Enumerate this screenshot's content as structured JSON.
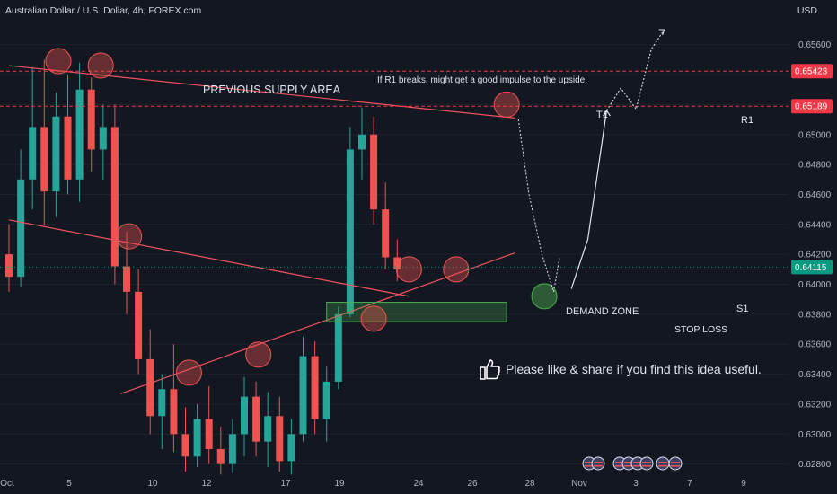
{
  "header": {
    "title": "Australian Dollar / U.S. Dollar, 4h, FOREX.com",
    "currency": "USD"
  },
  "annotations": {
    "supply_area": "PREVIOUS SUPPLY AREA",
    "r1_note": "If R1 breaks, might get a good impulse to the upside.",
    "t1_label": "T1",
    "r1_label": "R1",
    "s1_label": "S1",
    "demand_zone": "DEMAND ZONE",
    "stop_loss": "STOP LOSS",
    "like_text": "Please like & share if you find this idea useful."
  },
  "colors": {
    "background": "#131722",
    "bull": "#26a69a",
    "bear": "#ef5350",
    "trendline": "#f05460",
    "demand_zone": "#4caf50",
    "current_price_bg": "#089981",
    "level_price_bg": "#f23645"
  },
  "icons": [
    "thumbs-up-icon",
    "flag-au-icon",
    "flag-us-icon"
  ],
  "chart_data": {
    "type": "candlestick",
    "title": "Australian Dollar / U.S. Dollar, 4h, FOREX.com",
    "ylabel": "USD",
    "ylim": [
      0.6272,
      0.6579
    ],
    "y_ticks": [
      "0.65600",
      "0.65400",
      "0.65200",
      "0.65000",
      "0.64800",
      "0.64600",
      "0.64400",
      "0.64200",
      "0.64000",
      "0.63800",
      "0.63600",
      "0.63400",
      "0.63200",
      "0.63000",
      "0.62800"
    ],
    "x_ticks": [
      "Oct",
      "5",
      "10",
      "12",
      "17",
      "19",
      "24",
      "26",
      "28",
      "Nov",
      "3",
      "7",
      "9"
    ],
    "price_labels": [
      {
        "value": 0.65423,
        "label": "0.65423",
        "style": "dashed"
      },
      {
        "value": 0.65189,
        "label": "0.65189",
        "style": "dashed"
      },
      {
        "value": 0.64115,
        "label": "0.64115",
        "style": "current"
      }
    ],
    "trendlines": [
      {
        "name": "R1",
        "from": [
          0,
          0.6546
        ],
        "to": [
          43,
          0.6511
        ]
      },
      {
        "name": "",
        "from": [
          0,
          0.6443
        ],
        "to": [
          34,
          0.6392
        ]
      },
      {
        "name": "",
        "from": [
          9.5,
          0.6327
        ],
        "to": [
          43,
          0.6421
        ]
      }
    ],
    "zones": [
      {
        "name": "DEMAND ZONE",
        "from_x": 27,
        "to_x": 42.3,
        "y_top": 0.6388,
        "y_bottom": 0.6375
      }
    ],
    "targets": [
      {
        "name": "T1",
        "x": 34.5,
        "y": 0.6517
      }
    ],
    "candles": [
      {
        "o": 0.642,
        "h": 0.644,
        "l": 0.6395,
        "c": 0.6405
      },
      {
        "o": 0.6405,
        "h": 0.649,
        "l": 0.6398,
        "c": 0.647
      },
      {
        "o": 0.647,
        "h": 0.6545,
        "l": 0.645,
        "c": 0.6505
      },
      {
        "o": 0.6505,
        "h": 0.655,
        "l": 0.644,
        "c": 0.6462
      },
      {
        "o": 0.6462,
        "h": 0.6528,
        "l": 0.6445,
        "c": 0.6512
      },
      {
        "o": 0.6512,
        "h": 0.654,
        "l": 0.646,
        "c": 0.647
      },
      {
        "o": 0.647,
        "h": 0.6548,
        "l": 0.6455,
        "c": 0.653
      },
      {
        "o": 0.653,
        "h": 0.6538,
        "l": 0.6475,
        "c": 0.649
      },
      {
        "o": 0.649,
        "h": 0.652,
        "l": 0.647,
        "c": 0.6505
      },
      {
        "o": 0.6505,
        "h": 0.652,
        "l": 0.64,
        "c": 0.6412
      },
      {
        "o": 0.6412,
        "h": 0.6435,
        "l": 0.638,
        "c": 0.6395
      },
      {
        "o": 0.6395,
        "h": 0.641,
        "l": 0.634,
        "c": 0.635
      },
      {
        "o": 0.635,
        "h": 0.637,
        "l": 0.63,
        "c": 0.6312
      },
      {
        "o": 0.6312,
        "h": 0.634,
        "l": 0.629,
        "c": 0.633
      },
      {
        "o": 0.633,
        "h": 0.636,
        "l": 0.6288,
        "c": 0.63
      },
      {
        "o": 0.63,
        "h": 0.6318,
        "l": 0.6275,
        "c": 0.6285
      },
      {
        "o": 0.6285,
        "h": 0.632,
        "l": 0.6278,
        "c": 0.631
      },
      {
        "o": 0.631,
        "h": 0.6332,
        "l": 0.628,
        "c": 0.629
      },
      {
        "o": 0.629,
        "h": 0.6305,
        "l": 0.6273,
        "c": 0.628
      },
      {
        "o": 0.628,
        "h": 0.631,
        "l": 0.6274,
        "c": 0.63
      },
      {
        "o": 0.63,
        "h": 0.6338,
        "l": 0.6285,
        "c": 0.6325
      },
      {
        "o": 0.6325,
        "h": 0.6335,
        "l": 0.6285,
        "c": 0.6295
      },
      {
        "o": 0.6295,
        "h": 0.6328,
        "l": 0.6278,
        "c": 0.6312
      },
      {
        "o": 0.6312,
        "h": 0.6325,
        "l": 0.6275,
        "c": 0.6282
      },
      {
        "o": 0.6282,
        "h": 0.631,
        "l": 0.6273,
        "c": 0.63
      },
      {
        "o": 0.63,
        "h": 0.6365,
        "l": 0.6295,
        "c": 0.6352
      },
      {
        "o": 0.6352,
        "h": 0.6362,
        "l": 0.63,
        "c": 0.631
      },
      {
        "o": 0.631,
        "h": 0.6345,
        "l": 0.6295,
        "c": 0.6335
      },
      {
        "o": 0.6335,
        "h": 0.6385,
        "l": 0.633,
        "c": 0.638
      },
      {
        "o": 0.638,
        "h": 0.6505,
        "l": 0.6378,
        "c": 0.649
      },
      {
        "o": 0.649,
        "h": 0.6518,
        "l": 0.647,
        "c": 0.65
      },
      {
        "o": 0.65,
        "h": 0.6512,
        "l": 0.644,
        "c": 0.645
      },
      {
        "o": 0.645,
        "h": 0.6468,
        "l": 0.641,
        "c": 0.6418
      },
      {
        "o": 0.6418,
        "h": 0.643,
        "l": 0.6402,
        "c": 0.641
      }
    ]
  }
}
